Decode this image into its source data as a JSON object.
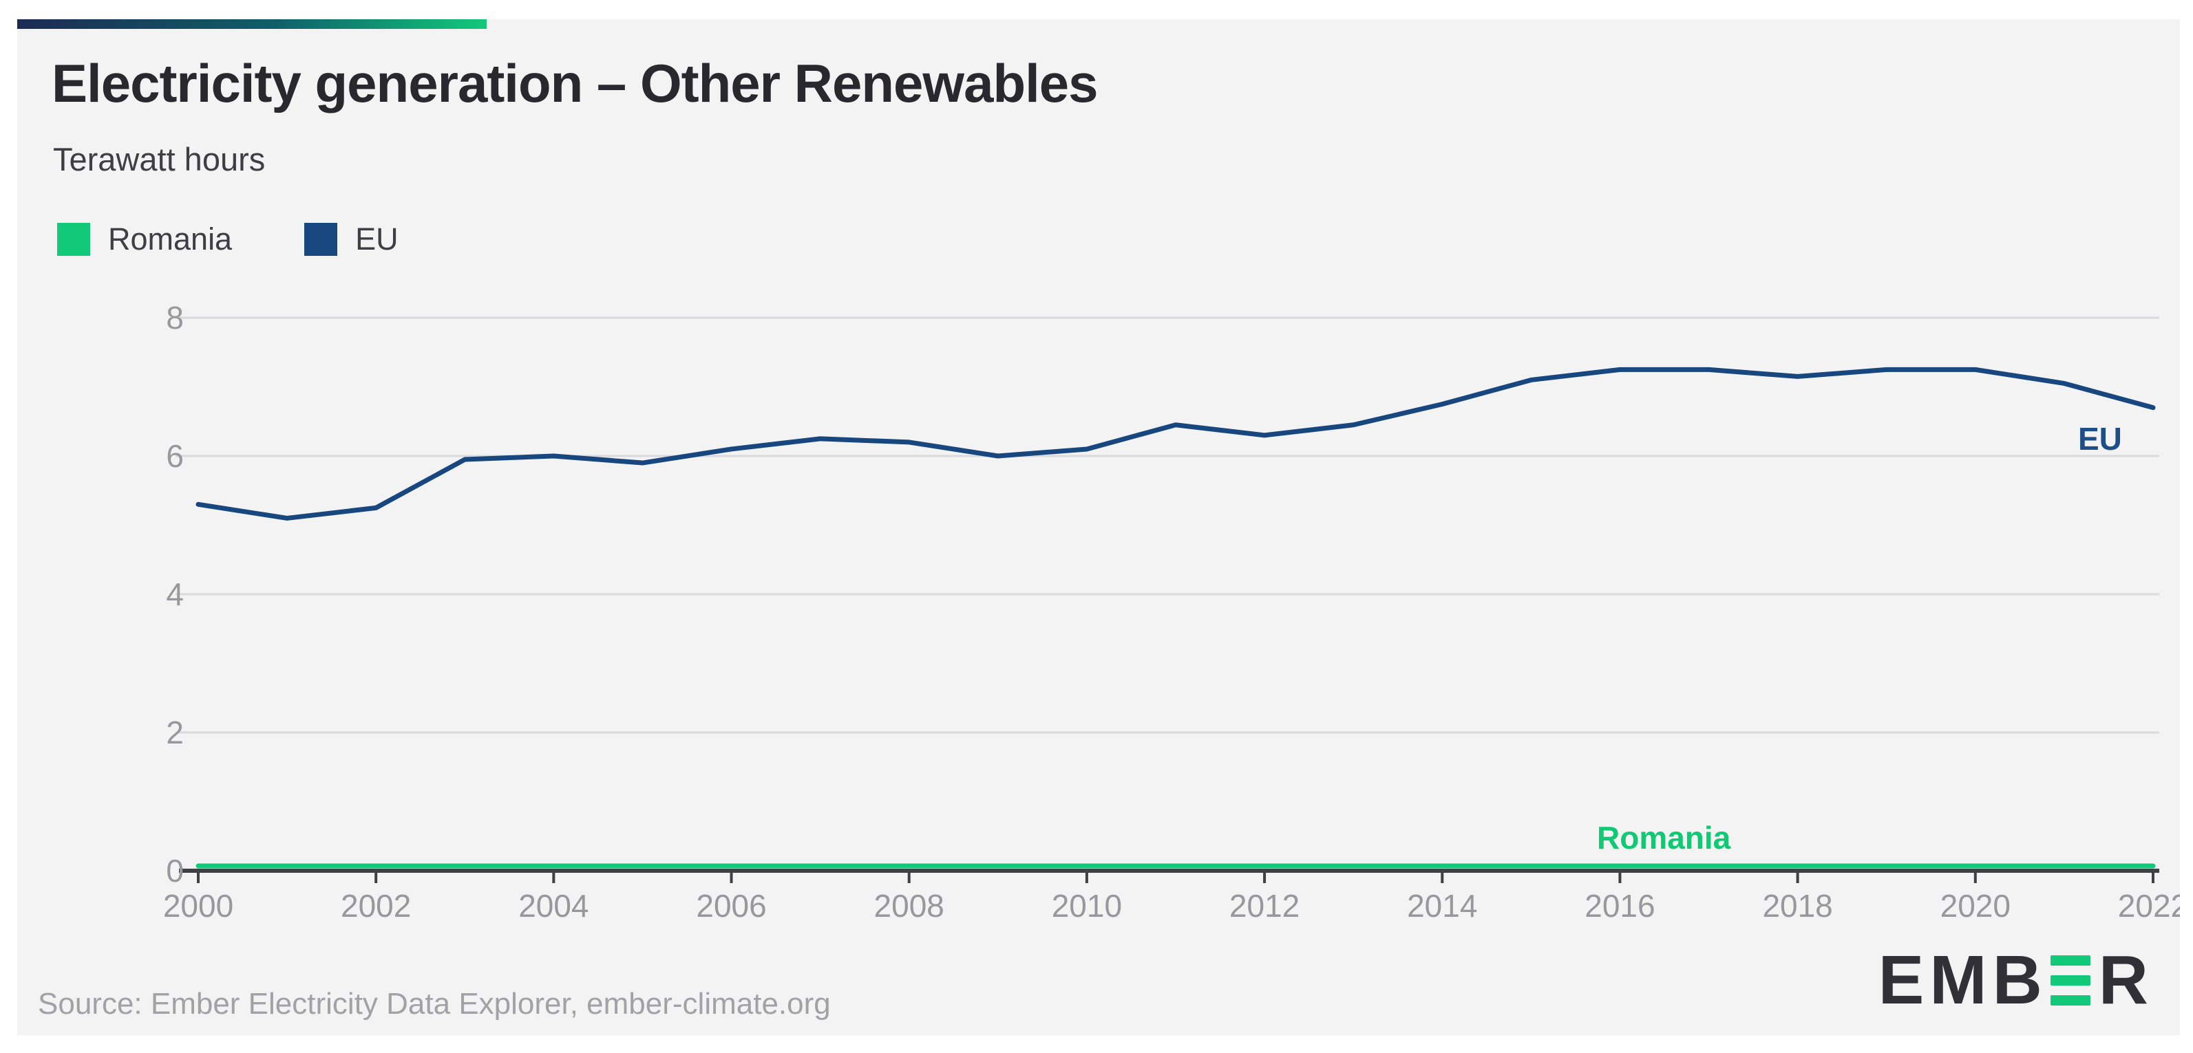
{
  "header": {
    "title": "Electricity generation – Other Renewables",
    "subtitle": "Terawatt hours"
  },
  "legend": {
    "items": [
      {
        "label": "Romania",
        "color": "#12c97a"
      },
      {
        "label": "EU",
        "color": "#17477e"
      }
    ]
  },
  "chart_data": {
    "type": "line",
    "title": "Electricity generation – Other Renewables",
    "ylabel": "Terawatt hours",
    "xlabel": "",
    "grid": true,
    "ylim": [
      0,
      8
    ],
    "yticks": [
      0,
      2,
      4,
      6,
      8
    ],
    "xticks": [
      2000,
      2002,
      2004,
      2006,
      2008,
      2010,
      2012,
      2014,
      2016,
      2018,
      2020,
      2022
    ],
    "x": [
      2000,
      2001,
      2002,
      2003,
      2004,
      2005,
      2006,
      2007,
      2008,
      2009,
      2010,
      2011,
      2012,
      2013,
      2014,
      2015,
      2016,
      2017,
      2018,
      2019,
      2020,
      2021,
      2022
    ],
    "series": [
      {
        "name": "Romania",
        "color": "#12c97a",
        "values": [
          0,
          0,
          0,
          0,
          0,
          0,
          0,
          0,
          0,
          0,
          0,
          0,
          0,
          0,
          0,
          0,
          0,
          0,
          0,
          0,
          0,
          0,
          0
        ]
      },
      {
        "name": "EU",
        "color": "#17477e",
        "values": [
          5.3,
          5.1,
          5.25,
          5.95,
          6.0,
          5.9,
          6.1,
          6.25,
          6.2,
          6.0,
          6.1,
          6.45,
          6.3,
          6.45,
          6.75,
          7.1,
          7.25,
          7.25,
          7.15,
          7.25,
          7.25,
          7.05,
          6.7
        ]
      }
    ],
    "series_end_labels": [
      "Romania",
      "EU"
    ]
  },
  "colors": {
    "axis": "#3f3f44",
    "gridline": "#dadadc",
    "tick_label": "#97979c"
  },
  "footer": {
    "source": "Source: Ember Electricity Data Explorer, ember-climate.org",
    "logo": {
      "left": "EMB",
      "right": "R"
    }
  }
}
